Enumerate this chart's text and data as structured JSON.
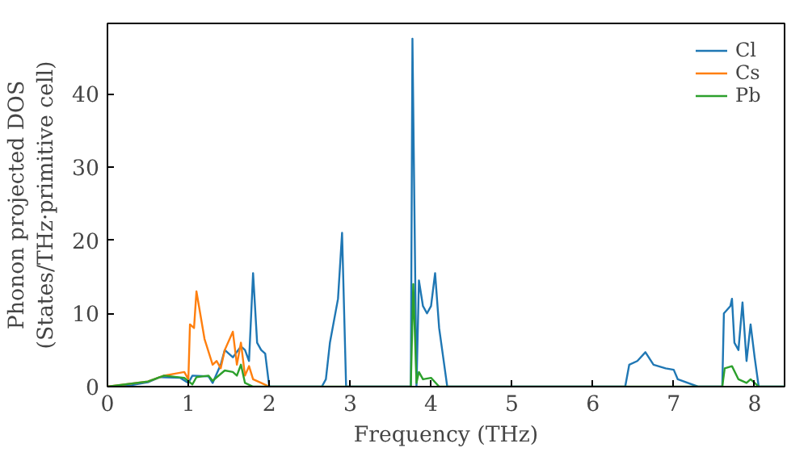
{
  "chart_data": {
    "type": "line",
    "xlabel": "Frequency (THz)",
    "ylabel": "Phonon projected DOS\n(States/THz·primitive cell)",
    "xlim": [
      0,
      8.37
    ],
    "ylim": [
      0,
      49.6
    ],
    "xticks": [
      0,
      1,
      2,
      3,
      4,
      5,
      6,
      7,
      8
    ],
    "yticks": [
      0,
      10,
      20,
      30,
      40
    ],
    "grid": false,
    "legend": "top right",
    "series": [
      {
        "name": "Cl",
        "color": "#1f77b4",
        "x": [
          0,
          0.3,
          0.5,
          0.65,
          0.9,
          1.0,
          1.05,
          1.25,
          1.3,
          1.4,
          1.45,
          1.55,
          1.65,
          1.7,
          1.75,
          1.8,
          1.85,
          1.9,
          1.95,
          2.0,
          2.65,
          2.7,
          2.75,
          2.85,
          2.9,
          2.95,
          3.75,
          3.77,
          3.82,
          3.85,
          3.9,
          3.95,
          4.0,
          4.05,
          4.1,
          4.15,
          4.2,
          6.4,
          6.45,
          6.55,
          6.65,
          6.75,
          6.9,
          7.0,
          7.05,
          7.3,
          7.6,
          7.62,
          7.7,
          7.72,
          7.75,
          7.8,
          7.85,
          7.9,
          7.95,
          8.0,
          8.05,
          8.37
        ],
        "values": [
          0,
          0.2,
          0.6,
          1.3,
          1.2,
          0.5,
          1.5,
          1.4,
          0.5,
          3,
          5,
          4,
          5.5,
          5,
          3.5,
          15.5,
          6,
          5,
          4.5,
          0,
          0,
          1,
          6,
          12,
          21,
          0,
          0,
          47.5,
          0,
          14.5,
          11,
          10,
          11,
          15.5,
          8,
          4,
          0,
          0,
          3,
          3.5,
          4.7,
          3,
          2.5,
          2.3,
          1,
          0,
          0,
          10,
          11,
          12,
          6,
          5,
          11.5,
          3.5,
          8.5,
          4,
          0,
          0
        ]
      },
      {
        "name": "Cs",
        "color": "#ff7f0e",
        "x": [
          0,
          0.5,
          0.7,
          0.95,
          1.0,
          1.02,
          1.07,
          1.1,
          1.2,
          1.3,
          1.35,
          1.4,
          1.45,
          1.55,
          1.6,
          1.65,
          1.7,
          1.75,
          1.8,
          1.9,
          2.0
        ],
        "values": [
          0,
          0.7,
          1.5,
          2,
          1,
          8.5,
          8,
          13,
          6.5,
          3,
          3.5,
          2.5,
          5,
          7.5,
          3,
          6,
          1.5,
          2.8,
          1,
          0.5,
          0
        ]
      },
      {
        "name": "Pb",
        "color": "#2ca02c",
        "x": [
          0,
          0.5,
          0.7,
          0.95,
          1.05,
          1.1,
          1.25,
          1.3,
          1.45,
          1.55,
          1.6,
          1.65,
          1.7,
          1.8,
          3.75,
          3.78,
          3.82,
          3.85,
          3.9,
          4.0,
          4.1,
          7.6,
          7.63,
          7.72,
          7.8,
          7.9,
          7.95,
          8.0,
          8.05,
          8.37
        ],
        "values": [
          0,
          0.7,
          1.5,
          1.2,
          0.3,
          1.3,
          1.5,
          0.8,
          2.2,
          2,
          1.5,
          3,
          0.5,
          0,
          0,
          14,
          0.5,
          2,
          1,
          1.2,
          0,
          0,
          2.5,
          2.8,
          1,
          0.5,
          1,
          0.5,
          0,
          0
        ]
      }
    ]
  }
}
